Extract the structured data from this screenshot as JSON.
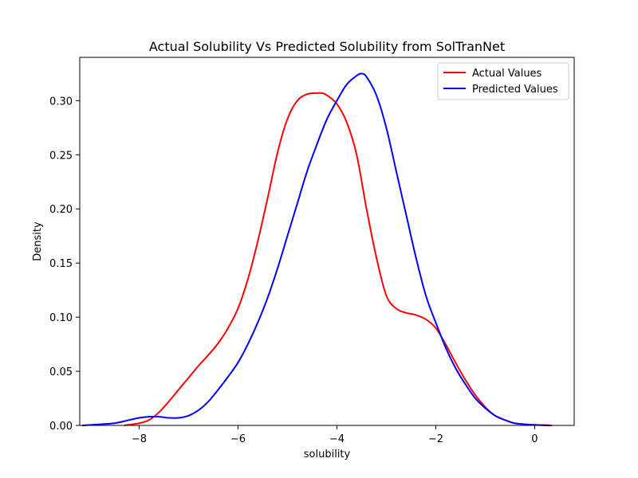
{
  "chart_data": {
    "type": "line",
    "title": "Actual Solubility Vs Predicted Solubility from SolTranNet",
    "xlabel": "solubility",
    "ylabel": "Density",
    "xlim": [
      -9.2,
      0.8
    ],
    "ylim": [
      0,
      0.34
    ],
    "xticks": [
      -8,
      -6,
      -4,
      -2,
      0
    ],
    "xtick_labels": [
      "−8",
      "−6",
      "−4",
      "−2",
      "0"
    ],
    "yticks": [
      0.0,
      0.05,
      0.1,
      0.15,
      0.2,
      0.25,
      0.3
    ],
    "ytick_labels": [
      "0.00",
      "0.05",
      "0.10",
      "0.15",
      "0.20",
      "0.25",
      "0.30"
    ],
    "grid": false,
    "legend_position": "top-right",
    "series": [
      {
        "name": "Actual Values",
        "color": "#ff0000",
        "x": [
          -8.3,
          -8.0,
          -7.8,
          -7.6,
          -7.4,
          -7.2,
          -7.0,
          -6.8,
          -6.6,
          -6.4,
          -6.2,
          -6.0,
          -5.8,
          -5.6,
          -5.4,
          -5.2,
          -5.0,
          -4.8,
          -4.6,
          -4.4,
          -4.3,
          -4.2,
          -4.0,
          -3.8,
          -3.6,
          -3.4,
          -3.2,
          -3.0,
          -2.8,
          -2.6,
          -2.4,
          -2.2,
          -2.0,
          -1.8,
          -1.6,
          -1.4,
          -1.2,
          -1.0,
          -0.8,
          -0.6,
          -0.4,
          -0.2,
          0.0,
          0.35
        ],
        "y": [
          0.0,
          0.002,
          0.005,
          0.012,
          0.022,
          0.033,
          0.044,
          0.055,
          0.065,
          0.076,
          0.09,
          0.108,
          0.135,
          0.17,
          0.21,
          0.252,
          0.283,
          0.3,
          0.306,
          0.307,
          0.307,
          0.305,
          0.297,
          0.28,
          0.25,
          0.2,
          0.155,
          0.12,
          0.108,
          0.104,
          0.102,
          0.098,
          0.09,
          0.075,
          0.058,
          0.042,
          0.028,
          0.017,
          0.009,
          0.005,
          0.002,
          0.001,
          0.0005,
          0.0
        ]
      },
      {
        "name": "Predicted Values",
        "color": "#0000ff",
        "x": [
          -9.15,
          -8.8,
          -8.5,
          -8.2,
          -8.0,
          -7.8,
          -7.6,
          -7.4,
          -7.2,
          -7.0,
          -6.8,
          -6.6,
          -6.4,
          -6.2,
          -6.0,
          -5.8,
          -5.6,
          -5.4,
          -5.2,
          -5.0,
          -4.8,
          -4.6,
          -4.4,
          -4.2,
          -4.0,
          -3.8,
          -3.6,
          -3.5,
          -3.4,
          -3.2,
          -3.0,
          -2.8,
          -2.6,
          -2.4,
          -2.2,
          -2.0,
          -1.8,
          -1.6,
          -1.4,
          -1.2,
          -1.0,
          -0.8,
          -0.6,
          -0.4,
          -0.2,
          0.0,
          0.3
        ],
        "y": [
          0.0,
          0.001,
          0.002,
          0.005,
          0.007,
          0.008,
          0.008,
          0.007,
          0.007,
          0.009,
          0.014,
          0.022,
          0.033,
          0.045,
          0.058,
          0.075,
          0.095,
          0.118,
          0.145,
          0.175,
          0.205,
          0.235,
          0.26,
          0.283,
          0.3,
          0.315,
          0.323,
          0.325,
          0.322,
          0.305,
          0.275,
          0.235,
          0.195,
          0.155,
          0.12,
          0.095,
          0.072,
          0.053,
          0.038,
          0.025,
          0.016,
          0.009,
          0.005,
          0.002,
          0.001,
          0.0005,
          0.0
        ]
      }
    ]
  }
}
